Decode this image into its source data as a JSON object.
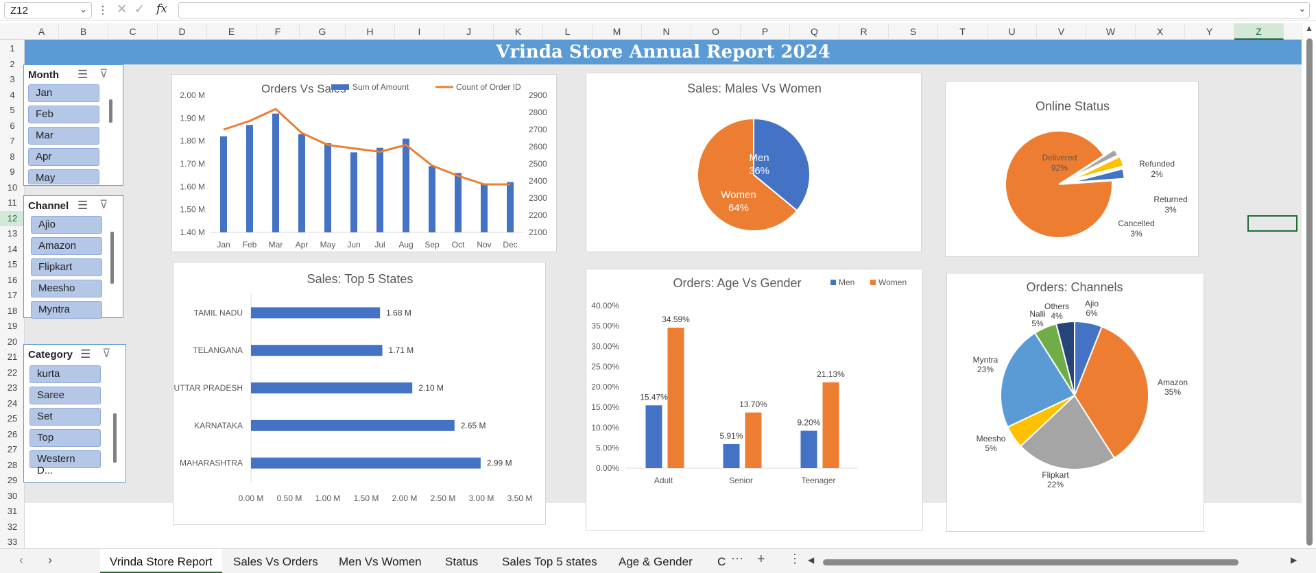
{
  "formula_bar": {
    "name_box": "Z12",
    "fx_label": "fx"
  },
  "columns": [
    "A",
    "B",
    "C",
    "D",
    "E",
    "F",
    "G",
    "H",
    "I",
    "J",
    "K",
    "L",
    "M",
    "N",
    "O",
    "P",
    "Q",
    "R",
    "S",
    "T",
    "U",
    "V",
    "W",
    "X",
    "Y",
    "Z"
  ],
  "rows": [
    "1",
    "2",
    "3",
    "4",
    "5",
    "6",
    "7",
    "8",
    "9",
    "10",
    "11",
    "12",
    "13",
    "14",
    "15",
    "16",
    "17",
    "18",
    "19",
    "20",
    "21",
    "22",
    "23",
    "24",
    "25",
    "26",
    "27",
    "28",
    "29",
    "30",
    "31",
    "32",
    "33"
  ],
  "banner": "Vrinda Store Annual Report 2024",
  "slicers": {
    "month": {
      "title": "Month",
      "items": [
        "Jan",
        "Feb",
        "Mar",
        "Apr",
        "May"
      ]
    },
    "channel": {
      "title": "Channel",
      "items": [
        "Ajio",
        "Amazon",
        "Flipkart",
        "Meesho",
        "Myntra"
      ]
    },
    "category": {
      "title": "Category",
      "items": [
        "kurta",
        "Saree",
        "Set",
        "Top",
        "Western D..."
      ]
    }
  },
  "tabs": [
    "Vrinda Store Report",
    "Sales Vs Orders",
    "Men Vs Women",
    "Status",
    "Sales Top 5 states",
    "Age & Gender",
    "C"
  ],
  "colors": {
    "blue": "#4472c4",
    "orange": "#ed7d31",
    "gray": "#a5a5a5",
    "yellow": "#ffc000",
    "lightblue": "#5b9bd5",
    "green": "#70ad47",
    "navy": "#264478",
    "banner": "#5b9bd5"
  },
  "chart_data": [
    {
      "id": "orders_vs_sales",
      "type": "bar",
      "title": "Orders Vs Sales",
      "categories": [
        "Jan",
        "Feb",
        "Mar",
        "Apr",
        "May",
        "Jun",
        "Jul",
        "Aug",
        "Sep",
        "Oct",
        "Nov",
        "Dec"
      ],
      "series": [
        {
          "name": "Sum of Amount",
          "type": "bar",
          "axis": "left",
          "values": [
            1.82,
            1.87,
            1.92,
            1.83,
            1.79,
            1.75,
            1.77,
            1.81,
            1.69,
            1.66,
            1.61,
            1.62
          ]
        },
        {
          "name": "Count of Order ID",
          "type": "line",
          "axis": "right",
          "values": [
            2700,
            2750,
            2820,
            2680,
            2610,
            2590,
            2570,
            2610,
            2490,
            2430,
            2380,
            2380
          ]
        }
      ],
      "y_left": {
        "min": 1.4,
        "max": 2.0,
        "ticks": [
          "1.40 M",
          "1.50 M",
          "1.60 M",
          "1.70 M",
          "1.80 M",
          "1.90 M",
          "2.00 M"
        ]
      },
      "y_right": {
        "min": 2100,
        "max": 2900,
        "ticks": [
          "2100",
          "2200",
          "2300",
          "2400",
          "2500",
          "2600",
          "2700",
          "2800",
          "2900"
        ]
      }
    },
    {
      "id": "males_vs_women",
      "type": "pie",
      "title": "Sales: Males Vs Women",
      "slices": [
        {
          "label": "Men",
          "pct": "36%",
          "value": 36
        },
        {
          "label": "Women",
          "pct": "64%",
          "value": 64
        }
      ]
    },
    {
      "id": "online_status",
      "type": "pie",
      "title": "Online Status",
      "slices": [
        {
          "label": "Delivered",
          "pct": "92%",
          "value": 92
        },
        {
          "label": "Refunded",
          "pct": "2%",
          "value": 2
        },
        {
          "label": "Returned",
          "pct": "3%",
          "value": 3
        },
        {
          "label": "Cancelled",
          "pct": "3%",
          "value": 3
        }
      ]
    },
    {
      "id": "top5_states",
      "type": "bar",
      "orientation": "horizontal",
      "title": "Sales: Top 5 States",
      "categories": [
        "TAMIL NADU",
        "TELANGANA",
        "UTTAR PRADESH",
        "KARNATAKA",
        "MAHARASHTRA"
      ],
      "values": [
        1.68,
        1.71,
        2.1,
        2.65,
        2.99
      ],
      "labels": [
        "1.68 M",
        "1.71 M",
        "2.10 M",
        "2.65 M",
        "2.99 M"
      ],
      "xlim": [
        0,
        3.5
      ],
      "x_ticks": [
        "0.00 M",
        "0.50 M",
        "1.00 M",
        "1.50 M",
        "2.00 M",
        "2.50 M",
        "3.00 M",
        "3.50 M"
      ]
    },
    {
      "id": "age_vs_gender",
      "type": "bar",
      "title": "Orders: Age Vs Gender",
      "categories": [
        "Adult",
        "Senior",
        "Teenager"
      ],
      "series": [
        {
          "name": "Men",
          "values": [
            15.47,
            5.91,
            9.2
          ],
          "labels": [
            "15.47%",
            "5.91%",
            "9.20%"
          ]
        },
        {
          "name": "Women",
          "values": [
            34.59,
            13.7,
            21.13
          ],
          "labels": [
            "34.59%",
            "13.70%",
            "21.13%"
          ]
        }
      ],
      "ylim": [
        0,
        40
      ],
      "y_ticks": [
        "0.00%",
        "5.00%",
        "10.00%",
        "15.00%",
        "20.00%",
        "25.00%",
        "30.00%",
        "35.00%",
        "40.00%"
      ]
    },
    {
      "id": "channels",
      "type": "pie",
      "title": "Orders: Channels",
      "slices": [
        {
          "label": "Ajio",
          "pct": "6%",
          "value": 6
        },
        {
          "label": "Amazon",
          "pct": "35%",
          "value": 35
        },
        {
          "label": "Flipkart",
          "pct": "22%",
          "value": 22
        },
        {
          "label": "Meesho",
          "pct": "5%",
          "value": 5
        },
        {
          "label": "Myntra",
          "pct": "23%",
          "value": 23
        },
        {
          "label": "Nalli",
          "pct": "5%",
          "value": 5
        },
        {
          "label": "Others",
          "pct": "4%",
          "value": 4
        }
      ]
    }
  ]
}
